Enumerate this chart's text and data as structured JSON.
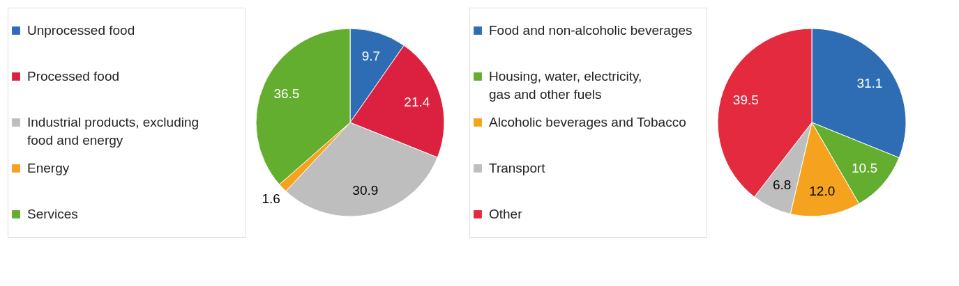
{
  "chart_data": [
    {
      "type": "pie",
      "categories": [
        "Unprocessed food",
        "Processed food",
        "Industrial products, excluding food and energy",
        "Energy",
        "Services"
      ],
      "values": [
        9.7,
        21.4,
        30.9,
        1.6,
        36.5
      ],
      "colors": [
        "#2e6db4",
        "#dc203f",
        "#bebebe",
        "#f5a31f",
        "#63ad2f"
      ],
      "value_labels": [
        "9.7",
        "21.4",
        "30.9",
        "1.6",
        "36.5"
      ],
      "legend": "left"
    },
    {
      "type": "pie",
      "categories": [
        "Food and non-alcoholic beverages",
        "Housing, water, electricity, gas and other fuels",
        "Alcoholic beverages and Tobacco",
        "Transport",
        "Other"
      ],
      "values": [
        31.1,
        10.5,
        12.0,
        6.8,
        39.5
      ],
      "colors": [
        "#2e6db4",
        "#63ad2f",
        "#f5a31f",
        "#bebebe",
        "#e32a3e"
      ],
      "value_labels": [
        "31.1",
        "10.5",
        "12.0",
        "6.8",
        "39.5"
      ],
      "legend": "left"
    }
  ]
}
